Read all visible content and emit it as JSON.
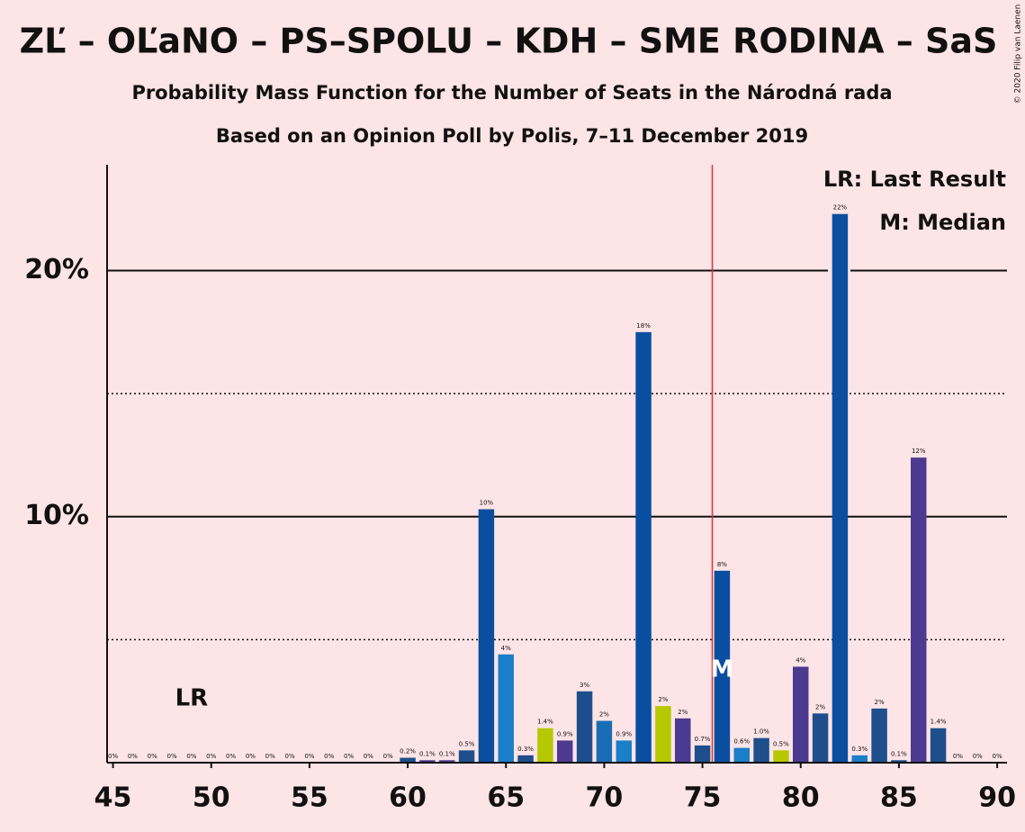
{
  "chart_data": {
    "type": "bar",
    "title": "ZĽ – OĽaNO – PS–SPOLU – KDH – SME RODINA – SaS",
    "subtitle": "Probability Mass Function for the Number of Seats in the Národná rada",
    "subtitle2": "Based on an Opinion Poll by Polis, 7–11 December 2019",
    "copyright": "© 2020 Filip van Laenen",
    "legend": [
      "LR: Last Result",
      "M: Median"
    ],
    "last_result": 49,
    "last_result_label": "LR",
    "median": 76,
    "median_label": "M",
    "majority_line": 75.5,
    "x": [
      45,
      46,
      47,
      48,
      49,
      50,
      51,
      52,
      53,
      54,
      55,
      56,
      57,
      58,
      59,
      60,
      61,
      62,
      63,
      64,
      65,
      66,
      67,
      68,
      69,
      70,
      71,
      72,
      73,
      74,
      75,
      76,
      77,
      78,
      79,
      80,
      81,
      82,
      83,
      84,
      85,
      86,
      87,
      88,
      89,
      90
    ],
    "values": [
      0,
      0,
      0,
      0,
      0,
      0,
      0,
      0,
      0,
      0,
      0,
      0,
      0,
      0,
      0,
      0.2,
      0.1,
      0.1,
      0.5,
      10.3,
      4.4,
      0.3,
      1.4,
      0.9,
      2.9,
      1.7,
      0.9,
      17.5,
      2.3,
      1.8,
      0.7,
      7.8,
      0.6,
      1.0,
      0.5,
      3.9,
      2.0,
      22.3,
      0.3,
      2.2,
      0.1,
      12.4,
      1.4,
      0,
      0,
      0
    ],
    "value_labels": [
      "0%",
      "0%",
      "0%",
      "0%",
      "0%",
      "0%",
      "0%",
      "0%",
      "0%",
      "0%",
      "0%",
      "0%",
      "0%",
      "0%",
      "0%",
      "0.2%",
      "0.1%",
      "0.1%",
      "0.5%",
      "10%",
      "4%",
      "0.3%",
      "1.4%",
      "0.9%",
      "3%",
      "2%",
      "0.9%",
      "18%",
      "2%",
      "2%",
      "0.7%",
      "8%",
      "0.6%",
      "1.0%",
      "0.5%",
      "4%",
      "2%",
      "22%",
      "0.3%",
      "2%",
      "0.1%",
      "12%",
      "1.4%",
      "0%",
      "0%",
      "0%"
    ],
    "colors": [
      "#1f4e8c",
      "#1f4e8c",
      "#1f4e8c",
      "#1f4e8c",
      "#1f4e8c",
      "#1f4e8c",
      "#1f4e8c",
      "#1f4e8c",
      "#1f4e8c",
      "#1f4e8c",
      "#1f4e8c",
      "#1f4e8c",
      "#1f4e8c",
      "#1f4e8c",
      "#1f4e8c",
      "#1f4e8c",
      "#4b3a8f",
      "#4b3a8f",
      "#1f4e8c",
      "#0a4ea0",
      "#1a7ec8",
      "#1f4e8c",
      "#b5c800",
      "#4b3a8f",
      "#1f4e8c",
      "#1a6db5",
      "#1a7ec8",
      "#0a4ea0",
      "#b5c800",
      "#4b3a8f",
      "#1f4e8c",
      "#0a4ea0",
      "#1a7ec8",
      "#1f4e8c",
      "#b5c800",
      "#4b3a8f",
      "#1f4e8c",
      "#0a4ea0",
      "#1a7ec8",
      "#1f4e8c",
      "#1f4e8c",
      "#4b3a8f",
      "#1f4e8c",
      "#1f4e8c",
      "#1f4e8c",
      "#1f4e8c"
    ],
    "xlim": [
      44.7,
      90.5
    ],
    "xticks": [
      45,
      50,
      55,
      60,
      65,
      70,
      75,
      80,
      85,
      90
    ],
    "ylim": [
      0,
      24.3
    ],
    "yticks": [
      {
        "value": 10,
        "label": "10%"
      },
      {
        "value": 20,
        "label": "20%"
      }
    ],
    "minor_yticks": [
      5,
      15
    ],
    "grid": true
  }
}
